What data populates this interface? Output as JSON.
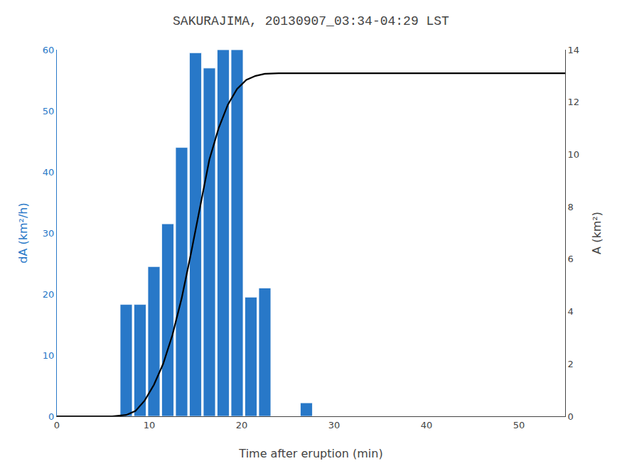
{
  "chart_data": {
    "type": "bar",
    "title": "SAKURAJIMA, 20130907_03:34-04:29 LST",
    "xlabel": "Time after eruption (min)",
    "ylabel": "dA (km²/h)",
    "y2label": "A (km²)",
    "series": [
      {
        "type": "bar",
        "color": "#2878C8",
        "x": [
          7.5,
          9.0,
          10.5,
          12.0,
          13.5,
          15.0,
          16.5,
          18.0,
          19.5,
          21.0,
          22.5,
          27.0
        ],
        "values": [
          18.3,
          18.3,
          24.5,
          31.5,
          44.0,
          59.5,
          57.0,
          60.0,
          60.0,
          19.5,
          21.0,
          2.2
        ]
      },
      {
        "type": "line",
        "color": "#000000",
        "axis": "y2",
        "x": [
          0,
          6,
          7.5,
          8.5,
          9.5,
          10.5,
          11.5,
          12.5,
          13.5,
          14.5,
          15.5,
          16.5,
          17.5,
          18.5,
          19.5,
          20.5,
          21.5,
          22.5,
          24.0,
          26.0,
          28.0,
          32.0,
          40.0,
          55.0
        ],
        "values": [
          0,
          0,
          0.05,
          0.2,
          0.6,
          1.2,
          2.0,
          3.1,
          4.5,
          6.2,
          8.0,
          9.8,
          11.0,
          11.9,
          12.5,
          12.85,
          13.0,
          13.08,
          13.1,
          13.1,
          13.1,
          13.1,
          13.1,
          13.1
        ]
      }
    ],
    "xlim": [
      0,
      55
    ],
    "xticks": [
      0,
      10,
      20,
      30,
      40,
      50
    ],
    "ylim": [
      0,
      60
    ],
    "yticks": [
      0,
      10,
      20,
      30,
      40,
      50,
      60
    ],
    "y2lim": [
      0,
      14
    ],
    "y2ticks": [
      0,
      2,
      4,
      6,
      8,
      10,
      12,
      14
    ],
    "grid": false
  }
}
